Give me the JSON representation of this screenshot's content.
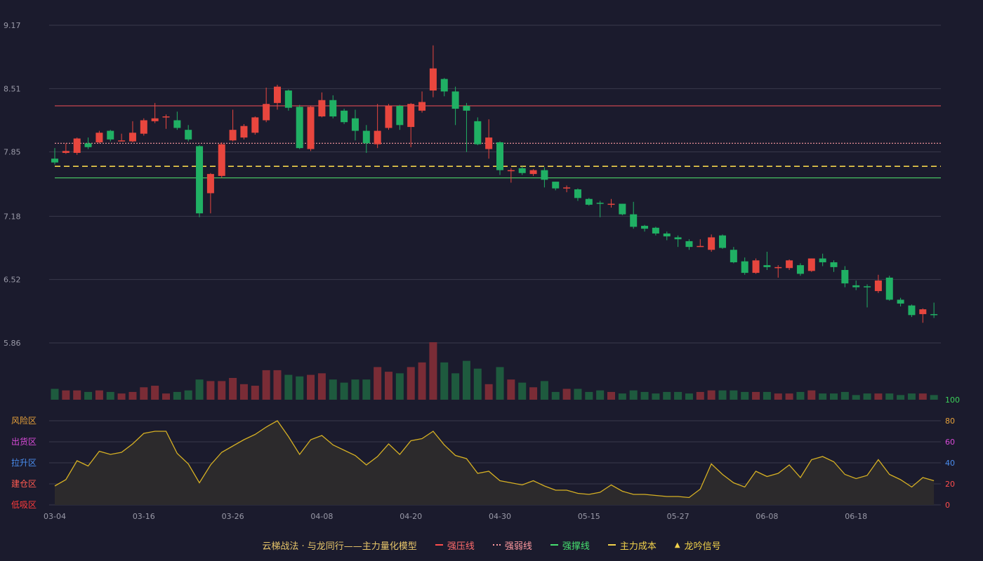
{
  "chart_data": {
    "type": "candlestick",
    "price_axis": {
      "ticks": [
        "9.17",
        "8.51",
        "7.85",
        "7.18",
        "6.52",
        "5.86"
      ],
      "range": [
        5.86,
        9.17
      ]
    },
    "x_axis": {
      "labels": [
        "03-04",
        "03-16",
        "03-26",
        "04-08",
        "04-20",
        "04-30",
        "05-15",
        "05-27",
        "06-08",
        "06-18"
      ],
      "label_bar_index": [
        0,
        8,
        16,
        24,
        32,
        40,
        48,
        56,
        64,
        72
      ]
    },
    "reference_lines": {
      "resistance": 8.33,
      "weak": 7.94,
      "support": 7.58,
      "main_cost": 7.7
    },
    "candles": [
      [
        7.78,
        7.74,
        7.89,
        7.72
      ],
      [
        7.84,
        7.86,
        7.94,
        7.83
      ],
      [
        7.84,
        7.99,
        8.0,
        7.82
      ],
      [
        7.94,
        7.9,
        8.0,
        7.88
      ],
      [
        7.95,
        8.05,
        8.07,
        7.94
      ],
      [
        8.07,
        7.98,
        8.08,
        7.96
      ],
      [
        7.97,
        7.97,
        8.04,
        7.96
      ],
      [
        7.96,
        8.05,
        8.17,
        7.95
      ],
      [
        8.04,
        8.18,
        8.2,
        8.02
      ],
      [
        8.17,
        8.2,
        8.36,
        8.15
      ],
      [
        8.21,
        8.22,
        8.24,
        8.09
      ],
      [
        8.18,
        8.1,
        8.27,
        8.08
      ],
      [
        8.08,
        7.98,
        8.13,
        7.96
      ],
      [
        7.91,
        7.21,
        7.92,
        7.17
      ],
      [
        7.42,
        7.62,
        7.63,
        7.21
      ],
      [
        7.6,
        7.93,
        7.95,
        7.58
      ],
      [
        7.97,
        8.08,
        8.29,
        7.96
      ],
      [
        8.0,
        8.12,
        8.14,
        7.98
      ],
      [
        8.05,
        8.21,
        8.22,
        8.03
      ],
      [
        8.18,
        8.35,
        8.52,
        8.16
      ],
      [
        8.36,
        8.53,
        8.55,
        8.29
      ],
      [
        8.49,
        8.31,
        8.5,
        8.28
      ],
      [
        8.32,
        7.89,
        8.34,
        7.88
      ],
      [
        7.88,
        8.32,
        8.33,
        7.86
      ],
      [
        8.22,
        8.39,
        8.47,
        8.21
      ],
      [
        8.39,
        8.22,
        8.44,
        8.2
      ],
      [
        8.28,
        8.16,
        8.3,
        8.14
      ],
      [
        8.2,
        8.07,
        8.29,
        7.97
      ],
      [
        8.07,
        7.94,
        8.13,
        7.84
      ],
      [
        7.93,
        8.07,
        8.35,
        7.89
      ],
      [
        8.1,
        8.33,
        8.35,
        8.08
      ],
      [
        8.33,
        8.13,
        8.34,
        8.08
      ],
      [
        8.11,
        8.35,
        8.36,
        7.9
      ],
      [
        8.28,
        8.37,
        8.48,
        8.26
      ],
      [
        8.49,
        8.72,
        8.96,
        8.42
      ],
      [
        8.61,
        8.48,
        8.62,
        8.43
      ],
      [
        8.48,
        8.3,
        8.53,
        8.13
      ],
      [
        8.33,
        8.28,
        8.36,
        7.85
      ],
      [
        8.17,
        7.93,
        8.21,
        7.92
      ],
      [
        7.88,
        8.0,
        8.19,
        7.78
      ],
      [
        7.95,
        7.66,
        7.96,
        7.61
      ],
      [
        7.66,
        7.66,
        7.68,
        7.53
      ],
      [
        7.68,
        7.63,
        7.7,
        7.61
      ],
      [
        7.62,
        7.66,
        7.67,
        7.6
      ],
      [
        7.66,
        7.56,
        7.69,
        7.48
      ],
      [
        7.54,
        7.47,
        7.54,
        7.45
      ],
      [
        7.48,
        7.48,
        7.5,
        7.43
      ],
      [
        7.46,
        7.37,
        7.47,
        7.34
      ],
      [
        7.36,
        7.3,
        7.37,
        7.29
      ],
      [
        7.32,
        7.31,
        7.34,
        7.17
      ],
      [
        7.3,
        7.31,
        7.36,
        7.27
      ],
      [
        7.31,
        7.2,
        7.31,
        7.19
      ],
      [
        7.2,
        7.07,
        7.33,
        7.05
      ],
      [
        7.08,
        7.05,
        7.09,
        7.02
      ],
      [
        7.06,
        7.0,
        7.07,
        6.98
      ],
      [
        7.0,
        6.97,
        7.02,
        6.93
      ],
      [
        6.96,
        6.94,
        6.98,
        6.86
      ],
      [
        6.92,
        6.86,
        6.94,
        6.83
      ],
      [
        6.87,
        6.87,
        6.94,
        6.86
      ],
      [
        6.83,
        6.96,
        6.99,
        6.81
      ],
      [
        6.98,
        6.85,
        6.99,
        6.84
      ],
      [
        6.83,
        6.7,
        6.86,
        6.69
      ],
      [
        6.71,
        6.59,
        6.75,
        6.57
      ],
      [
        6.59,
        6.72,
        6.74,
        6.58
      ],
      [
        6.67,
        6.65,
        6.81,
        6.62
      ],
      [
        6.64,
        6.65,
        6.67,
        6.54
      ],
      [
        6.64,
        6.72,
        6.73,
        6.62
      ],
      [
        6.67,
        6.58,
        6.69,
        6.56
      ],
      [
        6.61,
        6.74,
        6.74,
        6.6
      ],
      [
        6.74,
        6.7,
        6.79,
        6.66
      ],
      [
        6.7,
        6.65,
        6.72,
        6.6
      ],
      [
        6.62,
        6.48,
        6.66,
        6.44
      ],
      [
        6.46,
        6.44,
        6.51,
        6.41
      ],
      [
        6.45,
        6.44,
        6.47,
        6.23
      ],
      [
        6.4,
        6.51,
        6.57,
        6.38
      ],
      [
        6.54,
        6.31,
        6.56,
        6.3
      ],
      [
        6.31,
        6.27,
        6.33,
        6.24
      ],
      [
        6.25,
        6.15,
        6.26,
        6.13
      ],
      [
        6.16,
        6.21,
        6.22,
        6.07
      ],
      [
        6.16,
        6.15,
        6.28,
        6.12
      ]
    ],
    "volume": [
      7,
      6,
      6,
      5,
      6,
      5,
      4,
      5,
      8,
      9,
      4,
      5,
      6,
      13,
      12,
      12,
      14,
      10,
      9,
      19,
      19,
      16,
      15,
      16,
      17,
      13,
      11,
      13,
      13,
      21,
      18,
      17,
      21,
      24,
      37,
      24,
      17,
      25,
      20,
      10,
      21,
      13,
      11,
      8,
      12,
      5,
      7,
      7,
      5,
      6,
      5,
      4,
      6,
      5,
      4,
      5,
      5,
      4,
      5,
      6,
      6,
      6,
      5,
      5,
      5,
      4,
      4,
      5,
      6,
      4,
      4,
      5,
      3,
      4,
      4,
      4,
      3,
      4,
      4,
      3
    ],
    "indicator": {
      "name": "云梯战法 · 与龙同行——主力量化模型",
      "values": [
        18,
        24,
        42,
        37,
        51,
        48,
        50,
        58,
        68,
        70,
        70,
        49,
        39,
        21,
        38,
        50,
        56,
        62,
        67,
        74,
        80,
        65,
        48,
        62,
        66,
        57,
        52,
        47,
        38,
        46,
        58,
        48,
        61,
        63,
        70,
        57,
        47,
        44,
        30,
        32,
        23,
        21,
        19,
        23,
        18,
        14,
        14,
        11,
        10,
        12,
        19,
        13,
        10,
        10,
        9,
        8,
        8,
        7,
        15,
        39,
        29,
        21,
        17,
        32,
        27,
        30,
        38,
        26,
        43,
        46,
        41,
        29,
        25,
        28,
        43,
        29,
        24,
        17,
        26,
        23
      ],
      "ticks": [
        "100",
        "80",
        "60",
        "40",
        "20",
        "0"
      ],
      "zones": [
        {
          "label": "风险区",
          "color": "#e8a23a"
        },
        {
          "label": "出货区",
          "color": "#d84bd8"
        },
        {
          "label": "拉升区",
          "color": "#4a8ef0"
        },
        {
          "label": "建仓区",
          "color": "#ff5a50"
        },
        {
          "label": "低吸区",
          "color": "#ff3b3b"
        }
      ]
    },
    "legend_placement": "bottom-center"
  },
  "legend": {
    "title": "云梯战法 · 与龙同行——主力量化模型",
    "items": [
      {
        "label": "强压线",
        "color": "#ff4d4d"
      },
      {
        "label": "强弱线",
        "color": "#ff9aa0"
      },
      {
        "label": "强撑线",
        "color": "#46e070"
      },
      {
        "label": "主力成本",
        "color": "#f2d24b"
      },
      {
        "label": "龙吟信号",
        "color": "#f2d24b"
      }
    ]
  },
  "colors": {
    "background": "#1b1b2d",
    "up": "#e8463e",
    "down": "#20b064",
    "up_volume": "#7a2c36",
    "down_volume": "#1e5a3e",
    "grid": "#3a3a4c",
    "axis_text": "#9a9aa8",
    "indicator_line": "#d6b023",
    "indicator_fill": "#2c2a2c",
    "tick_yellow": "#e8a23a",
    "tick_100": "#3cd25a",
    "tick_pink": "#d84bd8",
    "tick_blue": "#4a8ef0",
    "tick_red": "#ff4d4d"
  }
}
